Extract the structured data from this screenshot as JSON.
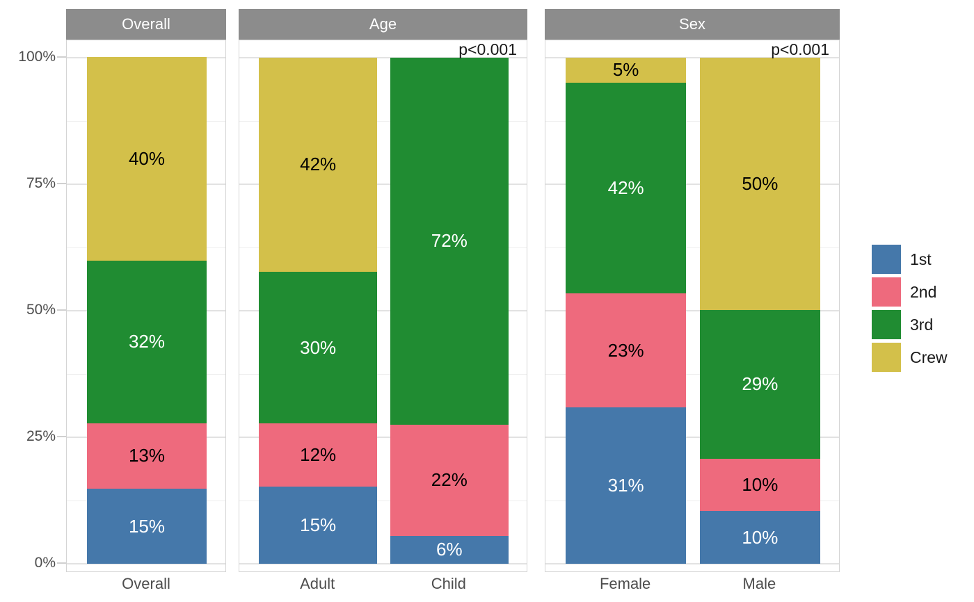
{
  "chart_data": {
    "type": "bar",
    "subtype": "stacked-percentage-faceted",
    "title": "",
    "xlabel": "",
    "ylabel": "",
    "y_axis": {
      "range": [
        0,
        100
      ],
      "tick_values": [
        0,
        25,
        50,
        75,
        100
      ],
      "tick_labels": [
        "0%",
        "25%",
        "50%",
        "75%",
        "100%"
      ],
      "minor_tick_values": [
        12.5,
        37.5,
        62.5,
        87.5
      ],
      "grid": true
    },
    "series": [
      {
        "name": "1st",
        "color": "#4578aa",
        "label_color": "#ffffff"
      },
      {
        "name": "2nd",
        "color": "#ee6a7d",
        "label_color": "#000000"
      },
      {
        "name": "3rd",
        "color": "#208c32",
        "label_color": "#ffffff"
      },
      {
        "name": "Crew",
        "color": "#d3c04a",
        "label_color": "#000000"
      }
    ],
    "legend": {
      "position": "right",
      "entries": [
        "1st",
        "2nd",
        "3rd",
        "Crew"
      ]
    },
    "facets": [
      {
        "title": "Overall",
        "p_value": "",
        "bars": [
          {
            "category": "Overall",
            "values": [
              14.8,
              13.0,
              32.1,
              40.2
            ],
            "labels": [
              "15%",
              "13%",
              "32%",
              "40%"
            ]
          }
        ]
      },
      {
        "title": "Age",
        "p_value": "p<0.001",
        "bars": [
          {
            "category": "Adult",
            "values": [
              15.2,
              12.5,
              30.0,
              42.3
            ],
            "labels": [
              "15%",
              "12%",
              "30%",
              "42%"
            ]
          },
          {
            "category": "Child",
            "values": [
              5.5,
              22.0,
              72.5,
              0
            ],
            "labels": [
              "6%",
              "22%",
              "72%",
              ""
            ]
          }
        ]
      },
      {
        "title": "Sex",
        "p_value": "p<0.001",
        "bars": [
          {
            "category": "Female",
            "values": [
              30.9,
              22.5,
              41.7,
              4.9
            ],
            "labels": [
              "31%",
              "23%",
              "42%",
              "5%"
            ]
          },
          {
            "category": "Male",
            "values": [
              10.4,
              10.3,
              29.5,
              49.8
            ],
            "labels": [
              "10%",
              "10%",
              "29%",
              "50%"
            ]
          }
        ]
      }
    ],
    "style": {
      "background": "#ffffff",
      "strip_bg": "#8c8c8c",
      "strip_text_color": "#ffffff",
      "axis_text_color": "#4d4d4d",
      "tick_color": "#d0d0d0",
      "panel_border": "#d4d4d4",
      "grid_major": "#e2e2e2",
      "grid_minor": "#eeeeee",
      "p_value_color": "#1a1a1a",
      "legend_text_color": "#1a1a1a"
    }
  }
}
